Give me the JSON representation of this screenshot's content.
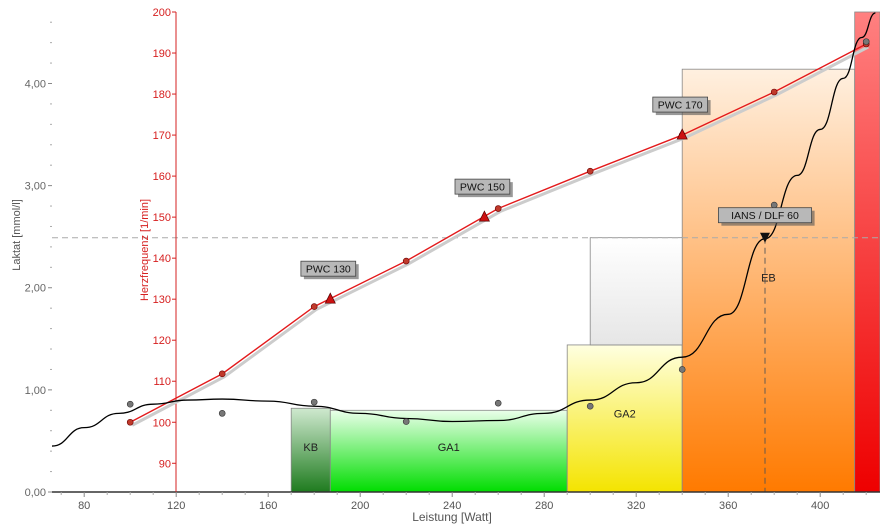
{
  "chart_data": {
    "type": "line",
    "xlabel": "Leistung [Watt]",
    "ylabel_left": "Laktat [mmol/l]",
    "ylabel_right": "Herzfrequenz [1/min]",
    "x_range": [
      66,
      426
    ],
    "x_ticks": [
      80,
      120,
      160,
      200,
      240,
      280,
      320,
      360,
      400
    ],
    "x_tick_labels": [
      "80",
      "120",
      "160",
      "200",
      "240",
      "280",
      "320",
      "360",
      "400"
    ],
    "lactate_range": [
      0,
      4.7
    ],
    "lactate_ticks": [
      0,
      1,
      2,
      3,
      4
    ],
    "lactate_tick_labels": [
      "0,00",
      "1,00",
      "2,00",
      "3,00",
      "4,00"
    ],
    "hr_range": [
      83,
      200
    ],
    "hr_ticks": [
      90,
      100,
      110,
      120,
      130,
      140,
      150,
      160,
      170,
      180,
      190,
      200
    ],
    "hr_tick_labels": [
      "90",
      "100",
      "110",
      "120",
      "130",
      "140",
      "150",
      "160",
      "170",
      "180",
      "190",
      "200"
    ],
    "colors": {
      "heart_rate": "#e31a1c",
      "lactate_curve": "#000000",
      "axis_red": "#d62020",
      "grid": "#999999",
      "threshold_line": "#aaaaaa"
    },
    "zones": [
      {
        "label": "KB",
        "x_start": 170,
        "x_end": 187,
        "lactate_top": 0.82,
        "gradient": [
          "#1e7b1e",
          "#cfe9cf"
        ]
      },
      {
        "label": "GA1",
        "x_start": 187,
        "x_end": 290,
        "lactate_top": 0.8,
        "gradient": [
          "#00dd00",
          "#eaffea"
        ]
      },
      {
        "label": "GA2",
        "x_start": 290,
        "x_end": 340,
        "lactate_top": 1.44,
        "gradient": [
          "#f4e400",
          "#ffffe0"
        ]
      },
      {
        "label": "EB",
        "x_start": 340,
        "x_end": 415,
        "lactate_top": 4.14,
        "gradient": [
          "#ff7a00",
          "#fff0e0"
        ]
      },
      {
        "label": "",
        "x_start": 415,
        "x_end": 426,
        "lactate_top": 4.7,
        "gradient": [
          "#ee0000",
          "#ff8080"
        ]
      }
    ],
    "extra_boxes": [
      {
        "x_start": 300,
        "x_end": 340,
        "lactate_bottom": 1.44,
        "lactate_top": 2.49
      },
      {
        "x_start": 340,
        "x_end": 415,
        "lactate_bottom": 4.14,
        "lactate_top": 4.14
      }
    ],
    "heart_rate_series": {
      "name": "Herzfrequenz",
      "points": [
        {
          "x": 100,
          "y": 100
        },
        {
          "x": 140,
          "y": 111.8
        },
        {
          "x": 180,
          "y": 128.2
        },
        {
          "x": 220,
          "y": 139.3
        },
        {
          "x": 260,
          "y": 152.1
        },
        {
          "x": 300,
          "y": 161.2
        },
        {
          "x": 340,
          "y": 170
        },
        {
          "x": 380,
          "y": 180.5
        },
        {
          "x": 420,
          "y": 192.2
        }
      ]
    },
    "lactate_points": [
      {
        "x": 100,
        "y": 0.86
      },
      {
        "x": 140,
        "y": 0.77
      },
      {
        "x": 180,
        "y": 0.88
      },
      {
        "x": 220,
        "y": 0.69
      },
      {
        "x": 260,
        "y": 0.87
      },
      {
        "x": 300,
        "y": 0.84
      },
      {
        "x": 340,
        "y": 1.2
      },
      {
        "x": 380,
        "y": 2.81
      },
      {
        "x": 420,
        "y": 4.41
      }
    ],
    "lactate_curve": [
      [
        66,
        0.45
      ],
      [
        80,
        0.63
      ],
      [
        95,
        0.77
      ],
      [
        110,
        0.86
      ],
      [
        125,
        0.9
      ],
      [
        140,
        0.91
      ],
      [
        160,
        0.89
      ],
      [
        180,
        0.84
      ],
      [
        200,
        0.77
      ],
      [
        220,
        0.72
      ],
      [
        240,
        0.69
      ],
      [
        260,
        0.7
      ],
      [
        280,
        0.77
      ],
      [
        300,
        0.9
      ],
      [
        320,
        1.07
      ],
      [
        340,
        1.32
      ],
      [
        360,
        1.74
      ],
      [
        376,
        2.48
      ],
      [
        390,
        3.1
      ],
      [
        400,
        3.55
      ],
      [
        410,
        4.05
      ],
      [
        418,
        4.45
      ],
      [
        424,
        4.69
      ]
    ],
    "markers": [
      {
        "label": "PWC 130",
        "x": 187,
        "hr": 130,
        "shape": "triangle-up"
      },
      {
        "label": "PWC 150",
        "x": 254,
        "hr": 150,
        "shape": "triangle-up"
      },
      {
        "label": "PWC 170",
        "x": 340,
        "hr": 170,
        "shape": "triangle-up"
      },
      {
        "label": "IANS / DLF 60",
        "x": 376,
        "lactate": 2.49,
        "shape": "triangle-down"
      }
    ],
    "threshold": {
      "x": 376,
      "lactate": 2.49
    }
  }
}
